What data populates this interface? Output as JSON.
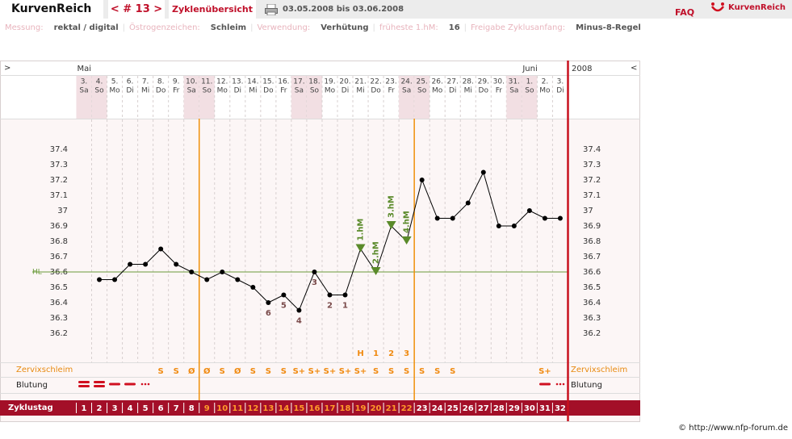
{
  "header": {
    "brand": "KurvenReich",
    "cycle_nav": "< # 13 >",
    "overview": "Zyklenübersicht",
    "period": "03.05.2008 bis 03.06.2008",
    "faq": "FAQ",
    "logo": "KurvenReich"
  },
  "settings": [
    {
      "label": "Messung:",
      "value": "rektal / digital"
    },
    {
      "label": "Östrogenzeichen:",
      "value": "Schleim"
    },
    {
      "label": "Verwendung:",
      "value": "Verhütung"
    },
    {
      "label": "früheste 1.hM:",
      "value": "16"
    },
    {
      "label": "Freigabe Zyklusanfang:",
      "value": "Minus-8-Regel"
    }
  ],
  "chart_data": {
    "type": "line",
    "nav_left": ">",
    "nav_right": "<",
    "year": "2008",
    "months": [
      "Mai",
      null,
      null,
      null,
      null,
      null,
      null,
      null,
      null,
      null,
      null,
      null,
      null,
      null,
      null,
      null,
      null,
      null,
      null,
      null,
      null,
      null,
      null,
      null,
      null,
      null,
      null,
      null,
      null,
      "Juni",
      null,
      null
    ],
    "dates": [
      "3.",
      "4.",
      "5.",
      "6.",
      "7.",
      "8.",
      "9.",
      "10.",
      "11.",
      "12.",
      "13.",
      "14.",
      "15.",
      "16.",
      "17.",
      "18.",
      "19.",
      "20.",
      "21.",
      "22.",
      "23.",
      "24.",
      "25.",
      "26.",
      "27.",
      "28.",
      "29.",
      "30.",
      "31.",
      "1.",
      "2.",
      "3."
    ],
    "weekdays": [
      "Sa",
      "So",
      "Mo",
      "Di",
      "Mi",
      "Do",
      "Fr",
      "Sa",
      "So",
      "Mo",
      "Di",
      "Mi",
      "Do",
      "Fr",
      "Sa",
      "So",
      "Mo",
      "Di",
      "Mi",
      "Do",
      "Fr",
      "Sa",
      "So",
      "Mo",
      "Di",
      "Mi",
      "Do",
      "Fr",
      "Sa",
      "So",
      "Mo",
      "Di"
    ],
    "weekend": [
      true,
      true,
      false,
      false,
      false,
      false,
      false,
      true,
      true,
      false,
      false,
      false,
      false,
      false,
      true,
      true,
      false,
      false,
      false,
      false,
      false,
      true,
      true,
      false,
      false,
      false,
      false,
      false,
      true,
      true,
      false,
      false
    ],
    "cycle_days": [
      1,
      2,
      3,
      4,
      5,
      6,
      7,
      8,
      9,
      10,
      11,
      12,
      13,
      14,
      15,
      16,
      17,
      18,
      19,
      20,
      21,
      22,
      23,
      24,
      25,
      26,
      27,
      28,
      29,
      30,
      31,
      32
    ],
    "values": [
      null,
      36.55,
      36.55,
      36.65,
      36.65,
      36.75,
      36.65,
      36.6,
      36.55,
      36.6,
      36.55,
      36.5,
      36.4,
      36.45,
      36.35,
      36.6,
      36.45,
      36.45,
      36.75,
      36.6,
      36.9,
      36.8,
      37.2,
      36.95,
      36.95,
      37.05,
      37.25,
      36.9,
      36.9,
      37.0,
      36.95,
      36.95
    ],
    "color": "#000000",
    "marker_color": "#5a8a2a",
    "low_counts": [
      null,
      null,
      null,
      null,
      null,
      null,
      null,
      null,
      null,
      null,
      null,
      null,
      6,
      5,
      4,
      3,
      2,
      1,
      null,
      null,
      null,
      null,
      null,
      null,
      null,
      null,
      null,
      null,
      null,
      null,
      null,
      null
    ],
    "high_markers": [
      null,
      null,
      null,
      null,
      null,
      null,
      null,
      null,
      null,
      null,
      null,
      null,
      null,
      null,
      null,
      null,
      null,
      null,
      "1.hM",
      "2.hM",
      "3.hM",
      "4.hM",
      null,
      null,
      null,
      null,
      null,
      null,
      null,
      null,
      null,
      null
    ],
    "peak_labels": [
      null,
      null,
      null,
      null,
      null,
      null,
      null,
      null,
      null,
      null,
      null,
      null,
      null,
      null,
      null,
      null,
      null,
      null,
      "H",
      "1",
      "2",
      "3",
      null,
      null,
      null,
      null,
      null,
      null,
      null,
      null,
      null,
      null
    ],
    "cervix": [
      null,
      null,
      null,
      null,
      null,
      "S",
      "S",
      "Ø",
      "Ø",
      "S",
      "Ø",
      "S",
      "S",
      "S",
      "S+",
      "S+",
      "S+",
      "S+",
      "S+",
      "S",
      "S",
      "S",
      "S",
      "S",
      "S",
      null,
      null,
      null,
      null,
      null,
      "S+",
      null
    ],
    "cervix_label": "Zervixschleim",
    "bleeding_label": "Blutung",
    "cycle_day_label": "Zyklustag",
    "fertile_days": [
      9,
      22
    ],
    "coverline": 36.6,
    "coverline_label": "HL",
    "coverline_color": "#6a9a3a",
    "ylim": [
      36.0,
      37.6
    ],
    "yticks": [
      36.2,
      36.3,
      36.4,
      36.5,
      36.6,
      36.7,
      36.8,
      36.9,
      37,
      37.1,
      37.2,
      37.3,
      37.4
    ],
    "grid": true
  },
  "footer": "© http://www.nfp-forum.de"
}
